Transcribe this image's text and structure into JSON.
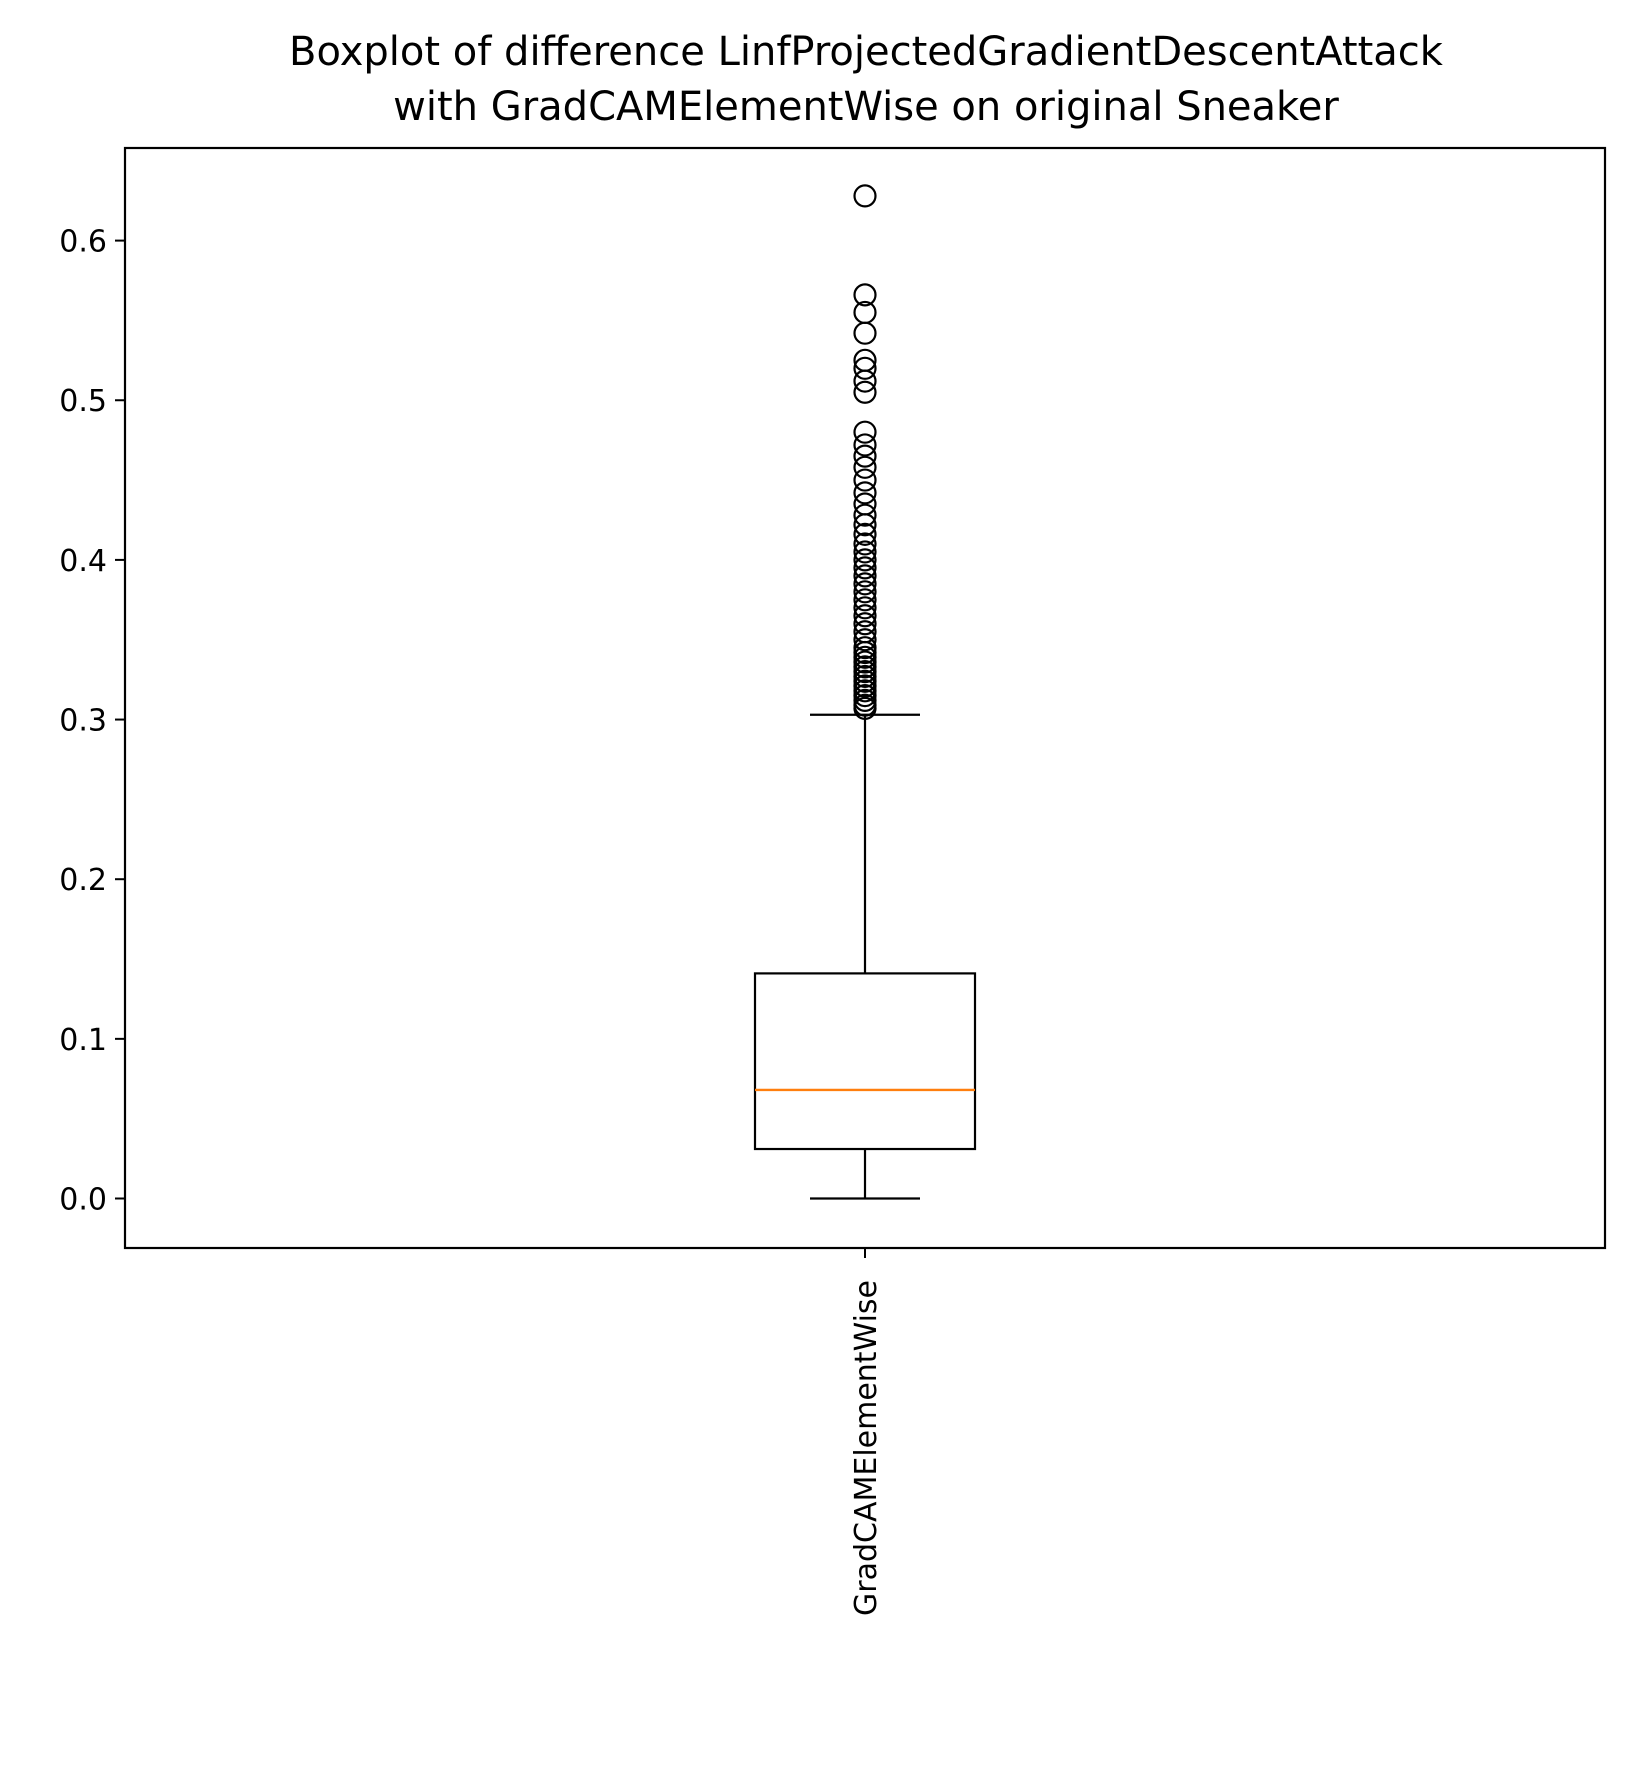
{
  "chart_data": {
    "type": "boxplot",
    "title": "Boxplot of difference LinfProjectedGradientDescentAttack\nwith GradCAMElementWise on original Sneaker",
    "title_lines": [
      "Boxplot of difference LinfProjectedGradientDescentAttack",
      "with GradCAMElementWise on original Sneaker"
    ],
    "xlabel": "",
    "ylabel": "",
    "categories": [
      "GradCAMElementWise"
    ],
    "ylim": [
      -0.031,
      0.658
    ],
    "yticks": [
      0.0,
      0.1,
      0.2,
      0.3,
      0.4,
      0.5,
      0.6
    ],
    "ytick_labels": [
      "0.0",
      "0.1",
      "0.2",
      "0.3",
      "0.4",
      "0.5",
      "0.6"
    ],
    "boxes": [
      {
        "category": "GradCAMElementWise",
        "whisker_low": 0.0,
        "q1": 0.031,
        "median": 0.068,
        "q3": 0.141,
        "whisker_high": 0.303,
        "outliers": [
          0.307,
          0.309,
          0.312,
          0.315,
          0.318,
          0.321,
          0.324,
          0.327,
          0.33,
          0.333,
          0.336,
          0.339,
          0.342,
          0.345,
          0.35,
          0.355,
          0.36,
          0.365,
          0.37,
          0.375,
          0.38,
          0.385,
          0.39,
          0.395,
          0.4,
          0.405,
          0.41,
          0.416,
          0.422,
          0.428,
          0.435,
          0.442,
          0.45,
          0.458,
          0.465,
          0.472,
          0.48,
          0.505,
          0.512,
          0.52,
          0.525,
          0.542,
          0.555,
          0.566,
          0.628
        ]
      }
    ],
    "grid": false,
    "colors": {
      "box": "#000000",
      "median": "#ff7f0e",
      "outlier_edge": "#000000"
    }
  }
}
